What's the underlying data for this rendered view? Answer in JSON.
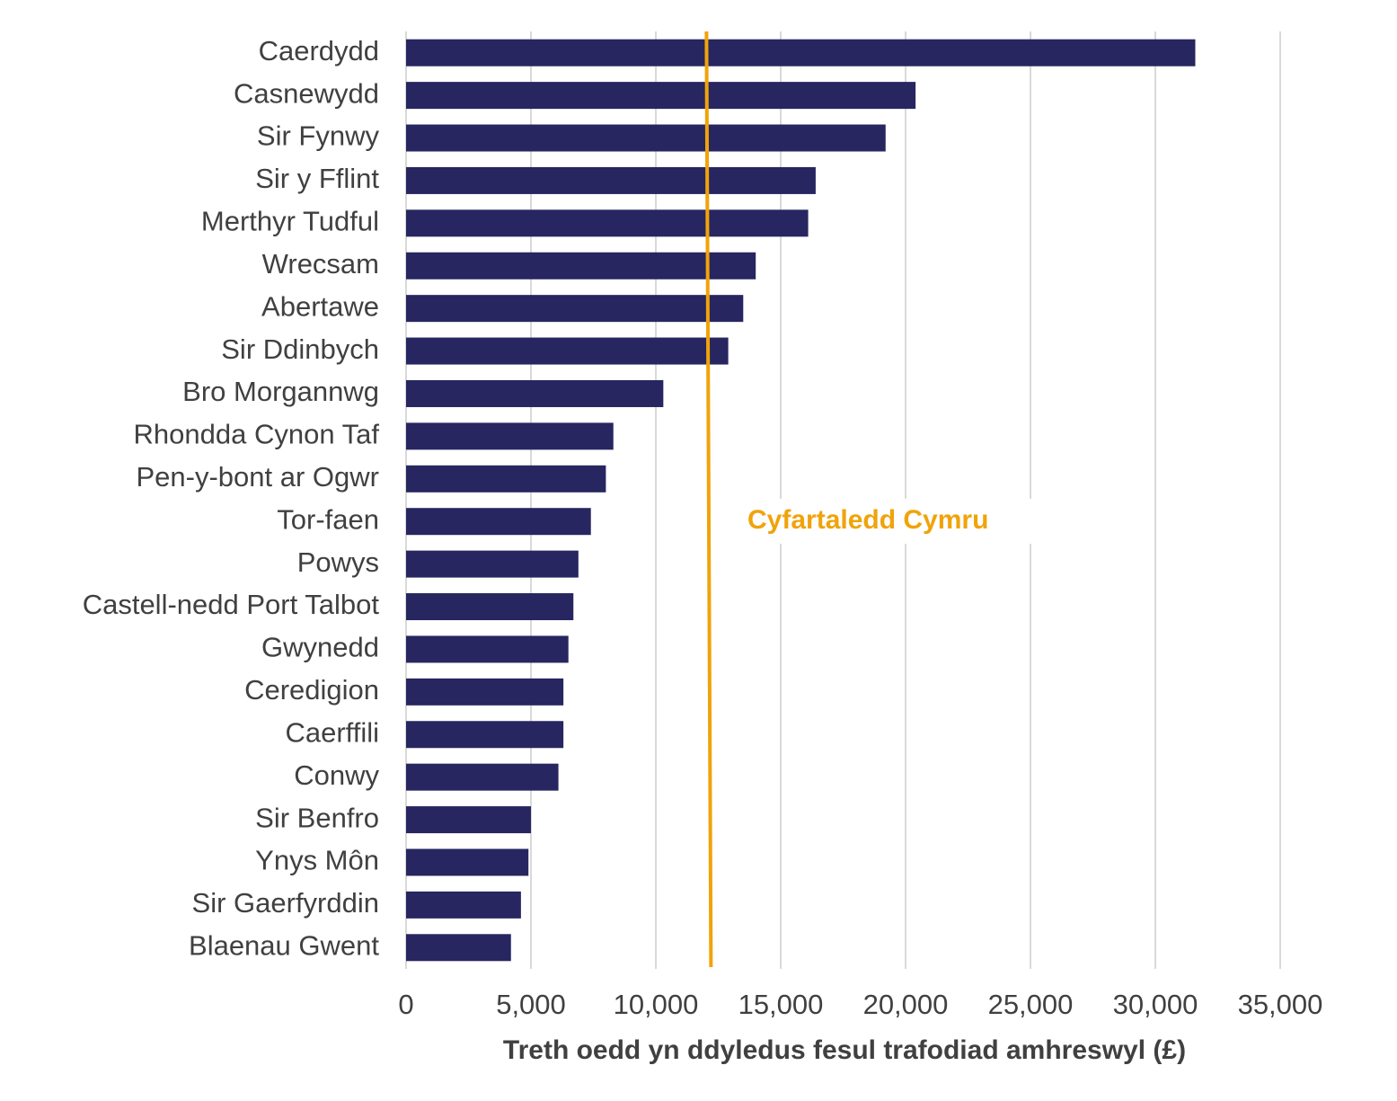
{
  "chart_data": {
    "type": "bar",
    "orientation": "horizontal",
    "x_axis_label": "Treth oedd yn ddyledus fesul trafodiad amhreswyl (£)",
    "categories": [
      "Caerdydd",
      "Casnewydd",
      "Sir Fynwy",
      "Sir y Fflint",
      "Merthyr Tudful",
      "Wrecsam",
      "Abertawe",
      "Sir Ddinbych",
      "Bro Morgannwg",
      "Rhondda Cynon Taf",
      "Pen-y-bont ar Ogwr",
      "Tor-faen",
      "Powys",
      "Castell-nedd Port Talbot",
      "Gwynedd",
      "Ceredigion",
      "Caerffili",
      "Conwy",
      "Sir Benfro",
      "Ynys Môn",
      "Sir Gaerfyrddin",
      "Blaenau Gwent"
    ],
    "values": [
      31600,
      20400,
      19200,
      16400,
      16100,
      14000,
      13500,
      12900,
      10300,
      8300,
      8000,
      7400,
      6900,
      6700,
      6500,
      6300,
      6300,
      6100,
      5000,
      4900,
      4600,
      4200
    ],
    "color": "#272660",
    "xlim": [
      0,
      35000
    ],
    "xticks": [
      0,
      {
        "value": 5000,
        "label": "5,000"
      },
      {
        "value": 10000,
        "label": "10,000"
      },
      {
        "value": 15000,
        "label": "15,000"
      },
      {
        "value": 20000,
        "label": "20,000"
      },
      {
        "value": 25000,
        "label": "25,000"
      },
      {
        "value": 30000,
        "label": "30,000"
      },
      {
        "value": 35000,
        "label": "35,000"
      }
    ],
    "grid": true,
    "reference_line": {
      "value": 12100,
      "label": "Cyfartaledd Cymru",
      "color": "#f0a30a"
    }
  }
}
